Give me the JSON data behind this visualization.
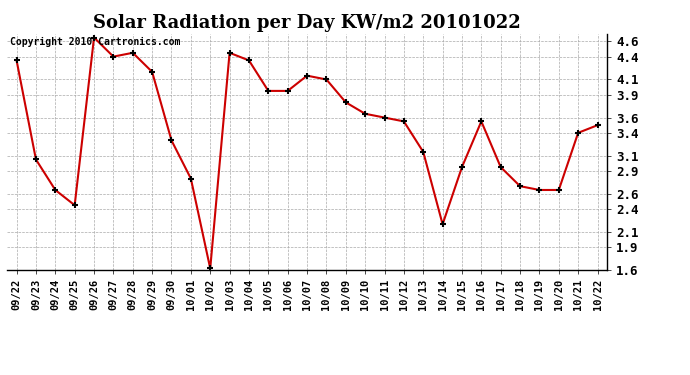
{
  "title": "Solar Radiation per Day KW/m2 20101022",
  "copyright_text": "Copyright 2010 Cartronics.com",
  "x_labels": [
    "09/22",
    "09/23",
    "09/24",
    "09/25",
    "09/26",
    "09/27",
    "09/28",
    "09/29",
    "09/30",
    "10/01",
    "10/02",
    "10/03",
    "10/04",
    "10/05",
    "10/06",
    "10/07",
    "10/08",
    "10/09",
    "10/10",
    "10/11",
    "10/12",
    "10/13",
    "10/14",
    "10/15",
    "10/16",
    "10/17",
    "10/18",
    "10/19",
    "10/20",
    "10/21",
    "10/22"
  ],
  "y_values": [
    4.35,
    3.05,
    2.65,
    2.45,
    4.65,
    4.4,
    4.45,
    4.2,
    3.3,
    2.8,
    1.62,
    4.45,
    4.35,
    3.95,
    3.95,
    4.15,
    4.1,
    3.8,
    3.65,
    3.6,
    3.55,
    3.15,
    2.2,
    2.95,
    3.55,
    2.95,
    2.7,
    2.65,
    2.65,
    3.4,
    3.5
  ],
  "line_color": "#cc0000",
  "marker": "+",
  "marker_color": "#000000",
  "marker_size": 5,
  "line_width": 1.5,
  "ylim": [
    1.6,
    4.7
  ],
  "yticks": [
    1.6,
    1.9,
    2.1,
    2.4,
    2.6,
    2.9,
    3.1,
    3.4,
    3.6,
    3.9,
    4.1,
    4.4,
    4.6
  ],
  "bg_color": "#ffffff",
  "grid_color": "#aaaaaa",
  "title_fontsize": 13,
  "copyright_fontsize": 7,
  "tick_fontsize": 7.5,
  "ytick_fontsize": 9
}
